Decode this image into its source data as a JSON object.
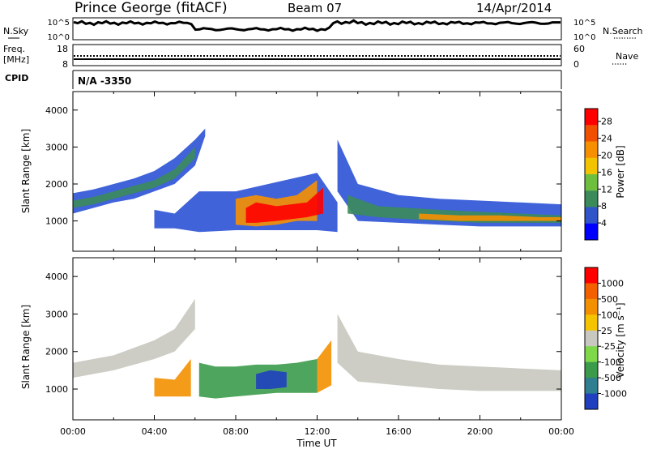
{
  "header": {
    "station": "Prince George (fitACF)",
    "beam": "Beam 07",
    "date": "14/Apr/2014"
  },
  "top_panels": {
    "nsky_label": "N.Sky",
    "nsearch_label": "N.Search",
    "nsky_ticks": [
      "10^5",
      "10^0"
    ],
    "nsearch_ticks": [
      "10^5",
      "10^0"
    ],
    "freq_label_1": "Freq.",
    "freq_label_2": "[MHz]",
    "freq_ticks": [
      "18",
      "8"
    ],
    "nave_label": "Nave",
    "nave_ticks": [
      "60",
      "0"
    ],
    "cpid_label": "CPID",
    "cpid_value": "N/A  -3350"
  },
  "chart_data": [
    {
      "type": "heatmap",
      "panel": "power",
      "ylabel": "Slant Range [km]",
      "xlabel": "",
      "colorbar_label": "Power [dB]",
      "ylim": [
        180,
        4500
      ],
      "yticks": [
        "1000",
        "2000",
        "3000",
        "4000"
      ],
      "yticks_values": [
        1000,
        2000,
        3000,
        4000
      ],
      "xlim": [
        0,
        24
      ],
      "colorbar_ticks": [
        "4",
        "8",
        "12",
        "16",
        "20",
        "24",
        "28"
      ],
      "colorbar_tick_values": [
        4,
        8,
        12,
        16,
        20,
        24,
        28
      ],
      "colorbar_range": [
        0,
        31
      ],
      "colorbar_colors": [
        "#0000ff",
        "#2f55c8",
        "#3b8b5a",
        "#6fbf3f",
        "#f2c300",
        "#f79000",
        "#f05000",
        "#ff0000"
      ],
      "background_color": "#2b52d6",
      "layers": [
        {
          "color": "#2b52d6",
          "points": [
            [
              0,
              1200,
              1750
            ],
            [
              1,
              1350,
              1850
            ],
            [
              2,
              1500,
              2000
            ],
            [
              3,
              1600,
              2150
            ],
            [
              4,
              1800,
              2350
            ],
            [
              5,
              2000,
              2700
            ],
            [
              6,
              2500,
              3200
            ],
            [
              6.5,
              3300,
              3500
            ]
          ]
        },
        {
          "color": "#3b8b5a",
          "points": [
            [
              0,
              1350,
              1550
            ],
            [
              1,
              1450,
              1650
            ],
            [
              2,
              1600,
              1800
            ],
            [
              3,
              1750,
              1950
            ],
            [
              4,
              1900,
              2100
            ],
            [
              5,
              2150,
              2400
            ],
            [
              6,
              2700,
              3000
            ]
          ]
        },
        {
          "color": "#2b52d6",
          "points": [
            [
              13,
              1800,
              3200
            ],
            [
              14,
              1000,
              2000
            ],
            [
              16,
              950,
              1700
            ],
            [
              18,
              900,
              1600
            ],
            [
              20,
              850,
              1550
            ],
            [
              22,
              850,
              1500
            ],
            [
              24,
              850,
              1450
            ]
          ]
        },
        {
          "color": "#3b8b5a",
          "points": [
            [
              13.5,
              1200,
              1700
            ],
            [
              15,
              1100,
              1400
            ],
            [
              18,
              1000,
              1300
            ],
            [
              20,
              950,
              1250
            ],
            [
              22,
              950,
              1200
            ],
            [
              24,
              950,
              1150
            ]
          ]
        },
        {
          "color": "#f79000",
          "points": [
            [
              17,
              1050,
              1200
            ],
            [
              19,
              1000,
              1150
            ],
            [
              21,
              1000,
              1150
            ],
            [
              23,
              1000,
              1100
            ],
            [
              24,
              1000,
              1100
            ]
          ]
        },
        {
          "color": "#2b52d6",
          "points": [
            [
              4,
              800,
              1300
            ],
            [
              5,
              800,
              1200
            ],
            [
              6.2,
              700,
              1800
            ],
            [
              8,
              750,
              1800
            ],
            [
              12,
              750,
              2300
            ],
            [
              13,
              700,
              1500
            ]
          ]
        },
        {
          "color": "#f79000",
          "points": [
            [
              8,
              900,
              1600
            ],
            [
              9,
              850,
              1700
            ],
            [
              10,
              900,
              1600
            ],
            [
              11,
              1000,
              1700
            ],
            [
              12,
              1000,
              2100
            ]
          ]
        },
        {
          "color": "#ff0000",
          "points": [
            [
              8.5,
              950,
              1350
            ],
            [
              9,
              950,
              1500
            ],
            [
              10,
              1000,
              1400
            ],
            [
              11.5,
              1100,
              1500
            ],
            [
              12.3,
              1200,
              1900
            ]
          ]
        }
      ]
    },
    {
      "type": "heatmap",
      "panel": "velocity",
      "ylabel": "Slant Range [km]",
      "xlabel": "Time UT",
      "colorbar_label": "Velocity [m s⁻¹]",
      "ylim": [
        180,
        4500
      ],
      "yticks": [
        "1000",
        "2000",
        "3000",
        "4000"
      ],
      "yticks_values": [
        1000,
        2000,
        3000,
        4000
      ],
      "xlim": [
        0,
        24
      ],
      "xticks": [
        "00:00",
        "04:00",
        "08:00",
        "12:00",
        "16:00",
        "20:00",
        "00:00"
      ],
      "xticks_values": [
        0,
        4,
        8,
        12,
        16,
        20,
        24
      ],
      "colorbar_ticks": [
        "1000",
        "500",
        "100",
        "25",
        "-25",
        "-100",
        "-500",
        "-1000"
      ],
      "colorbar_colors": [
        "#2040c0",
        "#2f7f90",
        "#3b9b4b",
        "#7ed84a",
        "#c8c8c0",
        "#f5c400",
        "#f39000",
        "#f26000",
        "#ff0000"
      ],
      "background_color": "#c8c8c0",
      "layers": [
        {
          "color": "#c8c8c0",
          "points": [
            [
              0,
              1300,
              1700
            ],
            [
              2,
              1500,
              1900
            ],
            [
              4,
              1800,
              2300
            ],
            [
              5,
              2000,
              2600
            ],
            [
              6,
              2600,
              3400
            ]
          ]
        },
        {
          "color": "#c8c8c0",
          "points": [
            [
              13,
              1700,
              3000
            ],
            [
              14,
              1200,
              2000
            ],
            [
              16,
              1100,
              1800
            ],
            [
              18,
              1000,
              1650
            ],
            [
              20,
              950,
              1600
            ],
            [
              22,
              950,
              1550
            ],
            [
              24,
              950,
              1500
            ]
          ]
        },
        {
          "color": "#f39000",
          "points": [
            [
              4,
              800,
              1300
            ],
            [
              5,
              800,
              1250
            ],
            [
              5.8,
              800,
              1800
            ]
          ]
        },
        {
          "color": "#3b9b4b",
          "points": [
            [
              6.2,
              800,
              1700
            ],
            [
              7,
              750,
              1600
            ],
            [
              8,
              800,
              1600
            ],
            [
              9,
              850,
              1650
            ],
            [
              10,
              900,
              1650
            ],
            [
              11,
              900,
              1700
            ],
            [
              12,
              900,
              1800
            ]
          ]
        },
        {
          "color": "#2040c0",
          "points": [
            [
              9,
              1000,
              1400
            ],
            [
              9.7,
              1000,
              1500
            ],
            [
              10.5,
              1050,
              1450
            ]
          ]
        },
        {
          "color": "#f39000",
          "points": [
            [
              12,
              900,
              1800
            ],
            [
              12.7,
              1100,
              2300
            ]
          ]
        }
      ]
    }
  ]
}
